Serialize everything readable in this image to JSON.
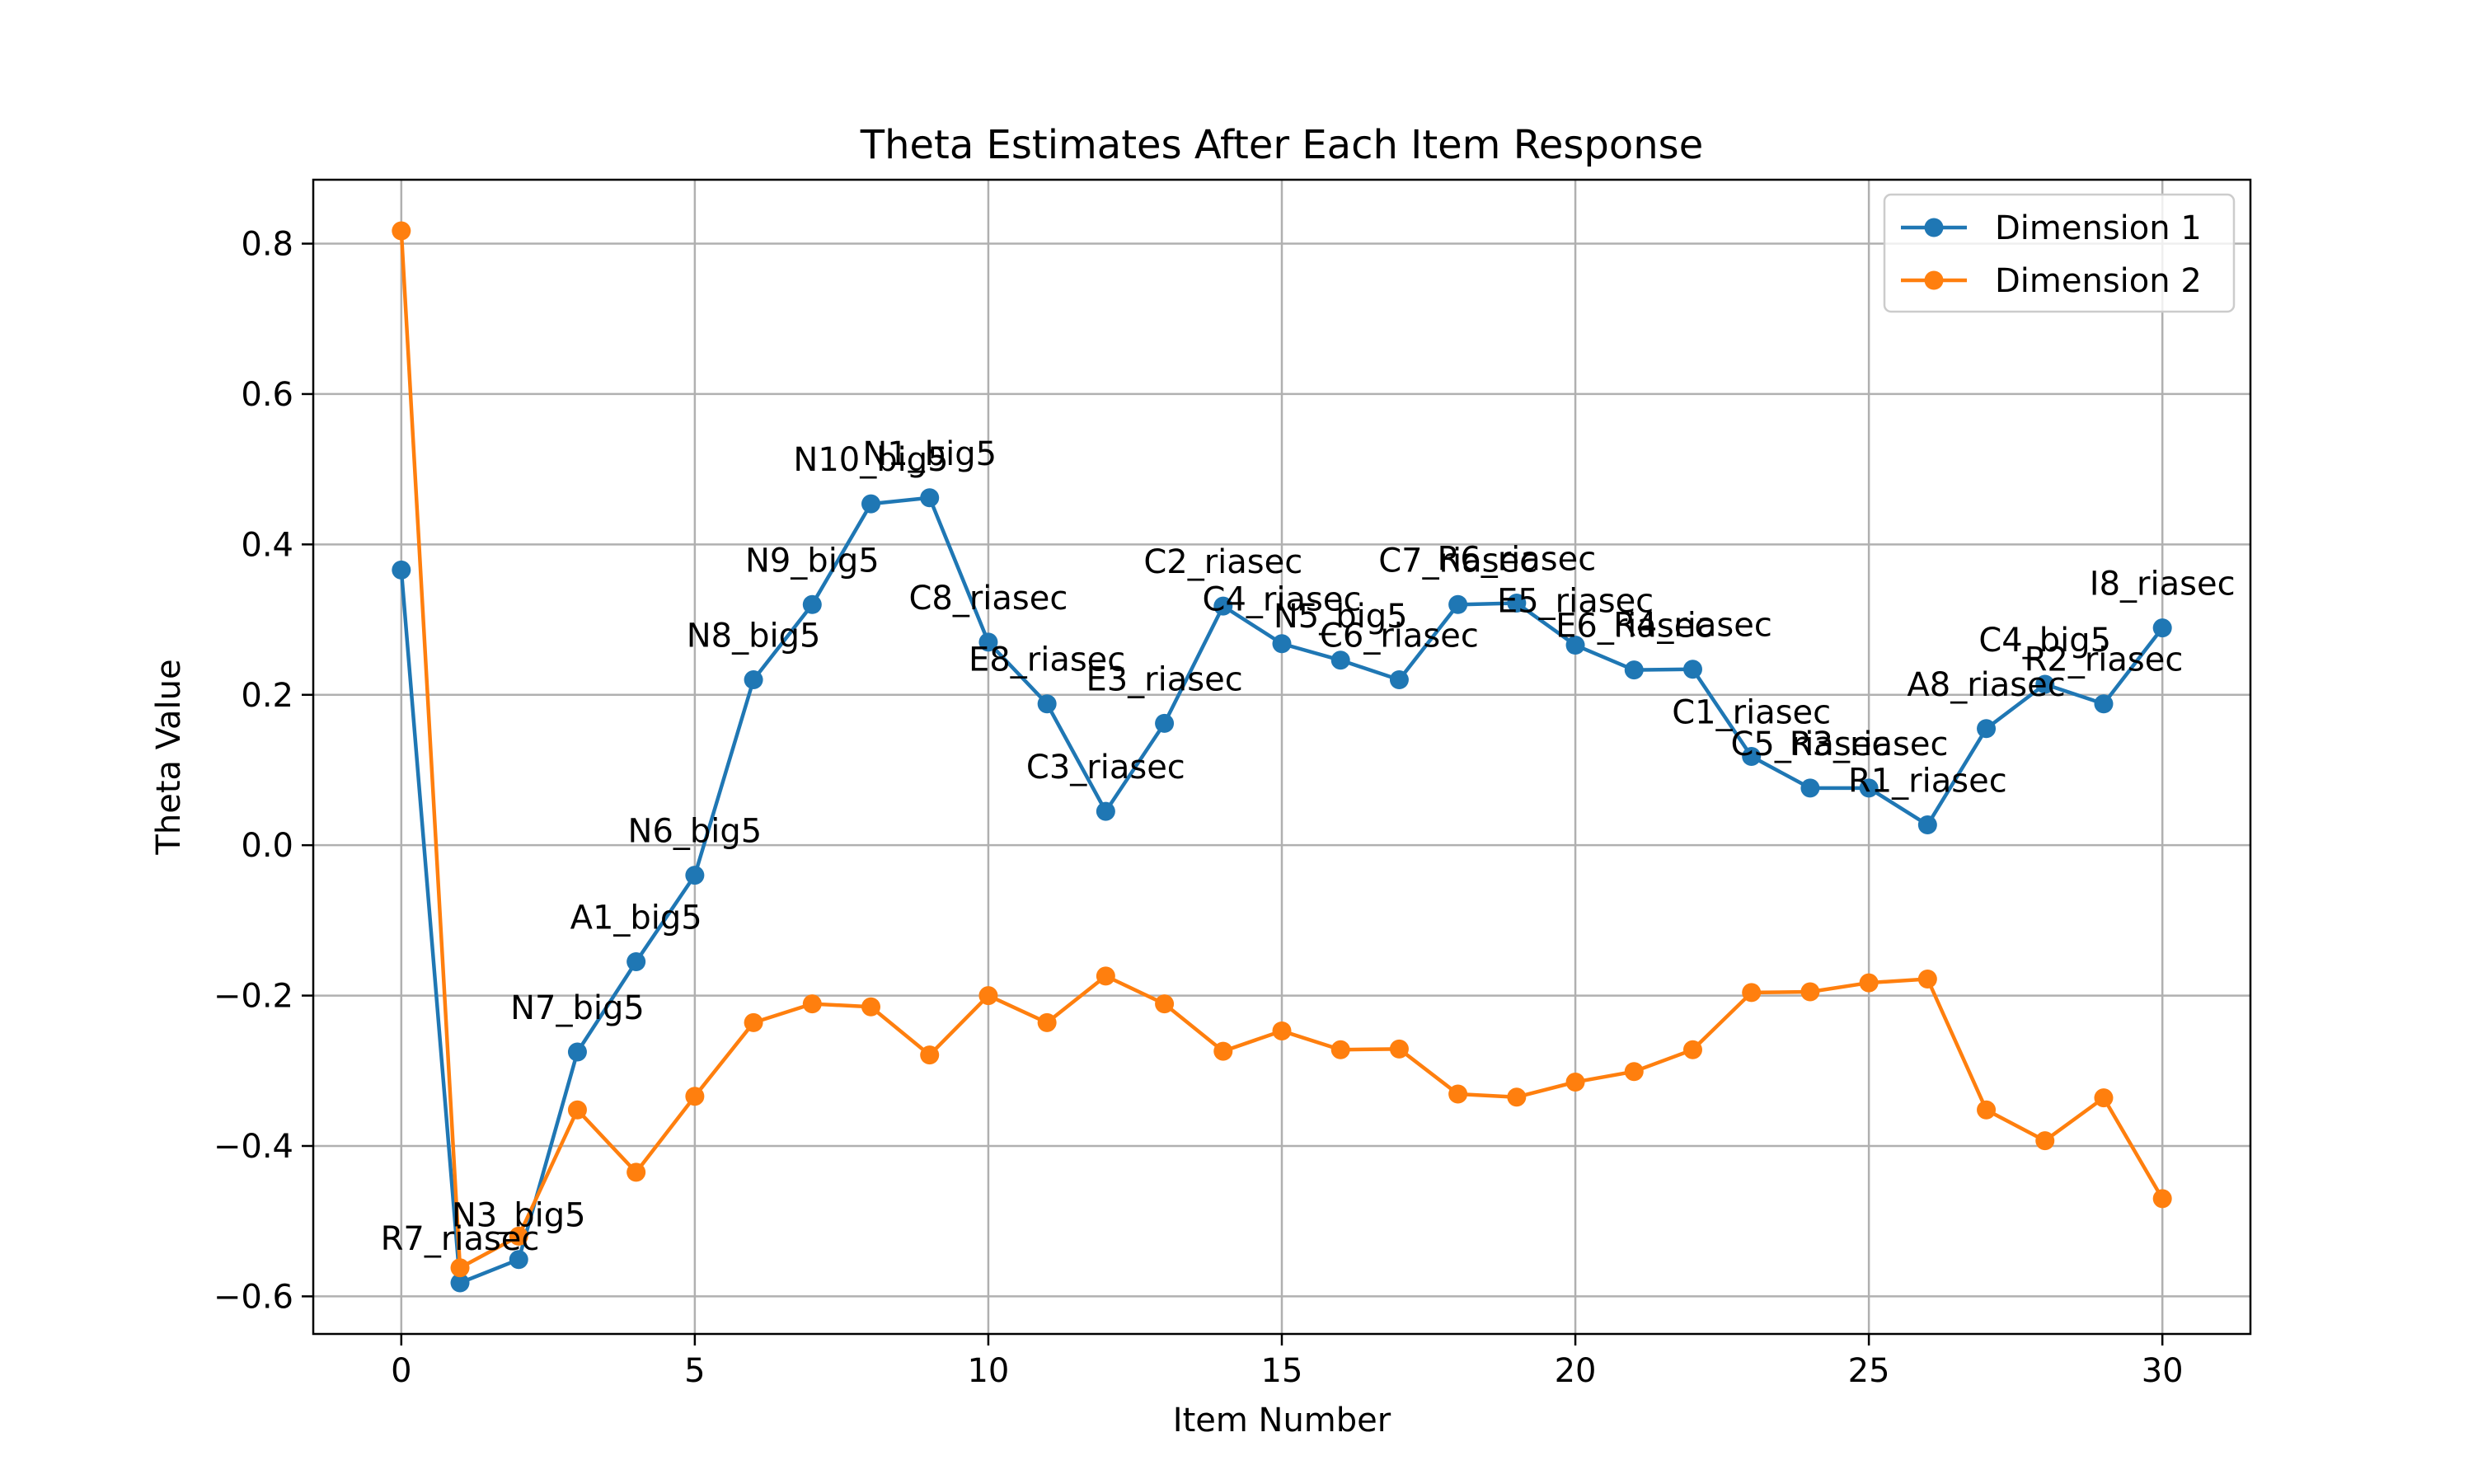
{
  "chart_data": {
    "type": "line",
    "title": "Theta Estimates After Each Item Response",
    "xlabel": "Item Number",
    "ylabel": "Theta Value",
    "xlim": [
      -1.5,
      31.5
    ],
    "ylim": [
      -0.65,
      0.885
    ],
    "xticks": [
      0,
      5,
      10,
      15,
      20,
      25,
      30
    ],
    "yticks": [
      -0.6,
      -0.4,
      -0.2,
      0.0,
      0.2,
      0.4,
      0.6,
      0.8
    ],
    "xtick_labels": [
      "0",
      "5",
      "10",
      "15",
      "20",
      "25",
      "30"
    ],
    "ytick_labels": [
      "−0.6",
      "−0.4",
      "−0.2",
      "0.0",
      "0.2",
      "0.4",
      "0.6",
      "0.8"
    ],
    "grid": true,
    "legend_position": "top-right",
    "x": [
      0,
      1,
      2,
      3,
      4,
      5,
      6,
      7,
      8,
      9,
      10,
      11,
      12,
      13,
      14,
      15,
      16,
      17,
      18,
      19,
      20,
      21,
      22,
      23,
      24,
      25,
      26,
      27,
      28,
      29,
      30
    ],
    "series": [
      {
        "name": "Dimension 1",
        "color": "#1f77b4",
        "values": [
          0.366,
          -0.582,
          -0.551,
          -0.275,
          -0.155,
          -0.04,
          0.22,
          0.32,
          0.454,
          0.462,
          0.27,
          0.188,
          0.045,
          0.162,
          0.318,
          0.268,
          0.246,
          0.22,
          0.32,
          0.322,
          0.266,
          0.233,
          0.234,
          0.118,
          0.076,
          0.076,
          0.027,
          0.155,
          0.214,
          0.188,
          0.289
        ]
      },
      {
        "name": "Dimension 2",
        "color": "#ff7f0e",
        "values": [
          0.817,
          -0.562,
          -0.52,
          -0.352,
          -0.435,
          -0.334,
          -0.236,
          -0.211,
          -0.215,
          -0.279,
          -0.2,
          -0.236,
          -0.174,
          -0.211,
          -0.274,
          -0.247,
          -0.272,
          -0.271,
          -0.331,
          -0.335,
          -0.315,
          -0.301,
          -0.272,
          -0.196,
          -0.195,
          -0.183,
          -0.178,
          -0.352,
          -0.393,
          -0.336,
          -0.47
        ]
      }
    ],
    "point_labels": [
      "",
      "R7_riasec",
      "N3_big5",
      "N7_big5",
      "A1_big5",
      "N6_big5",
      "N8_big5",
      "N9_big5",
      "N10_big5",
      "N1_big5",
      "C8_riasec",
      "E8_riasec",
      "C3_riasec",
      "E3_riasec",
      "C2_riasec",
      "C4_riasec",
      "N5_big5",
      "C6_riasec",
      "C7_riasec",
      "R6_riasec",
      "E5_riasec",
      "E6_riasec",
      "R4_riasec",
      "C1_riasec",
      "C5_riasec",
      "R3_riasec",
      "R1_riasec",
      "A8_riasec",
      "C4_big5",
      "R2_riasec",
      "I8_riasec"
    ]
  }
}
